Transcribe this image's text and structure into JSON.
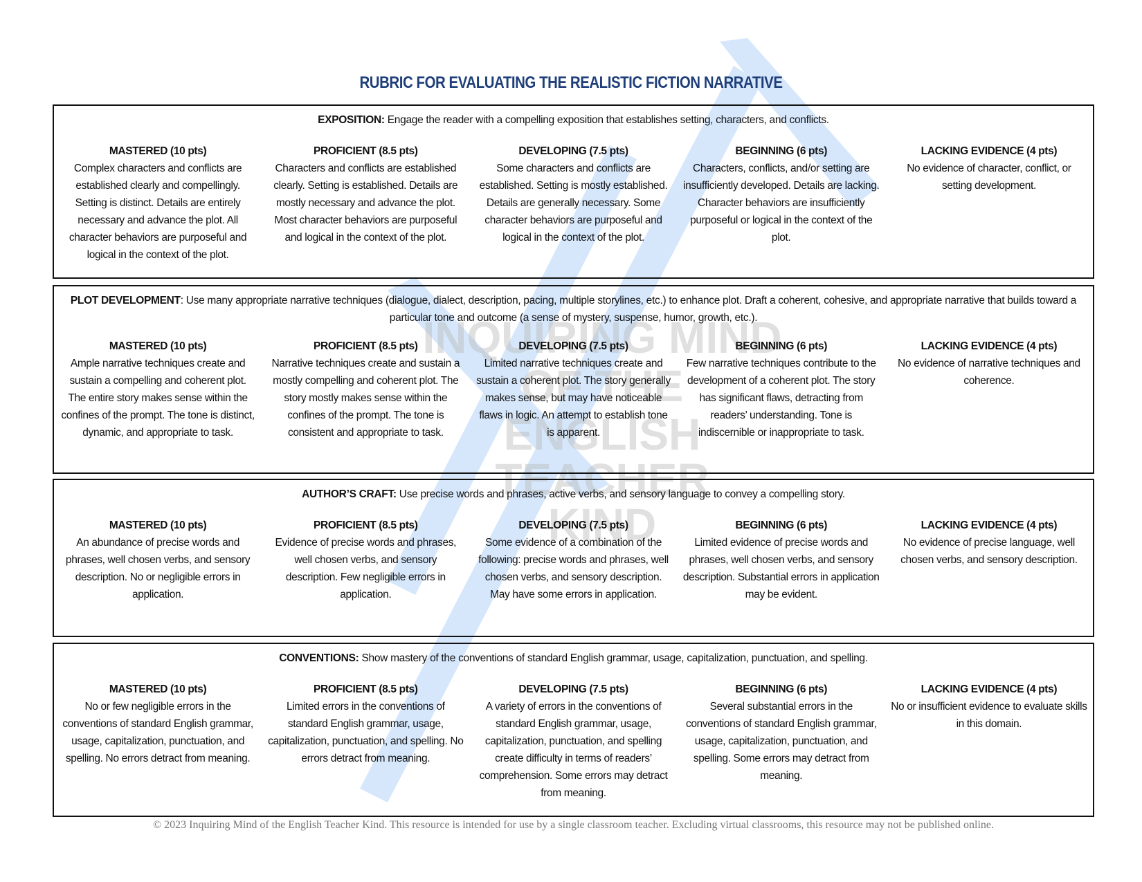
{
  "title": "RUBRIC FOR EVALUATING THE REALISTIC FICTION NARRATIVE",
  "watermark": {
    "logo_text": "INQUIRING MIND OF THE ENGLISH TEACHER KIND",
    "color": "#cfe3fb"
  },
  "levels": [
    "MASTERED (10 pts)",
    "PROFICIENT (8.5 pts)",
    "DEVELOPING (7.5 pts)",
    "BEGINNING (6 pts)",
    "LACKING EVIDENCE  (4 pts)"
  ],
  "sections": [
    {
      "label": "EXPOSITION:",
      "text": " Engage the reader with a compelling exposition that establishes setting, characters, and conflicts.",
      "cells": [
        "Complex characters and conflicts are established clearly and compellingly. Setting is distinct. Details are entirely necessary and advance the plot. All character behaviors are purposeful and logical in the context of the plot.",
        "Characters and conflicts are established clearly. Setting is established. Details are mostly necessary and advance the plot. Most character behaviors are purposeful and logical in the context of the plot.",
        "Some characters and conflicts are established. Setting is mostly established. Details are generally necessary. Some character behaviors are purposeful and logical in the context of the plot.",
        "Characters, conflicts, and/or setting are insufficiently developed. Details are lacking. Character behaviors are insufficiently purposeful or logical in the context of the plot.",
        "No evidence of character, conflict, or setting development."
      ]
    },
    {
      "label": "PLOT DEVELOPMENT",
      "text": ": Use many appropriate narrative techniques (dialogue, dialect, description, pacing, multiple storylines, etc.) to enhance plot. Draft a coherent, cohesive, and appropriate narrative that builds toward a particular tone and outcome (a sense of mystery, suspense, humor, growth, etc.).",
      "cells": [
        "Ample narrative techniques create and sustain a compelling and coherent plot. The entire story makes sense within the confines of the prompt. The tone is distinct, dynamic, and appropriate to task.",
        "Narrative techniques create and sustain a mostly compelling and coherent plot. The story mostly makes sense within the confines of the prompt. The tone is consistent and appropriate to task.",
        "Limited narrative techniques create and sustain a coherent plot. The story generally makes sense, but may have noticeable flaws in logic. An attempt to establish tone is apparent.",
        "Few narrative techniques contribute to the development of a coherent plot. The story has significant flaws, detracting from readers’ understanding. Tone is indiscernible or inappropriate to task.",
        "No evidence of narrative techniques and coherence."
      ]
    },
    {
      "label": "AUTHOR’S CRAFT:",
      "text": " Use precise words and phrases, active verbs, and sensory language to convey a compelling story.",
      "cells": [
        "An abundance of precise words and phrases, well chosen verbs, and sensory description. No or negligible errors in application.",
        "Evidence of precise words and phrases, well chosen verbs, and sensory description. Few negligible errors in application.",
        "Some evidence of a combination of the following: precise words and phrases, well chosen verbs, and sensory description. May have some errors in application.",
        "Limited evidence of precise words and phrases, well chosen verbs, and sensory description. Substantial errors in application may be evident.",
        "No evidence of precise language, well chosen verbs, and sensory description."
      ]
    },
    {
      "label": "CONVENTIONS:",
      "text": " Show mastery of the conventions of standard English grammar, usage, capitalization, punctuation, and spelling.",
      "cells": [
        "No or few negligible errors in the conventions of standard English grammar, usage, capitalization, punctuation, and spelling. No errors detract from meaning.",
        "Limited errors in the conventions of standard English grammar, usage, capitalization, punctuation, and spelling. No errors detract from meaning.",
        "A variety of errors in the conventions of standard English grammar, usage, capitalization, punctuation, and spelling create difficulty in terms of readers’ comprehension. Some errors may detract from meaning.",
        "Several substantial errors in the conventions of standard English grammar, usage, capitalization, punctuation, and spelling. Some errors may detract from meaning.",
        "No or insufficient evidence to evaluate skills in this domain."
      ]
    }
  ],
  "footer": "© 2023 Inquiring Mind of the English Teacher Kind.  This resource is intended for use by a single classroom teacher. Excluding virtual classrooms, this resource may not be published online."
}
